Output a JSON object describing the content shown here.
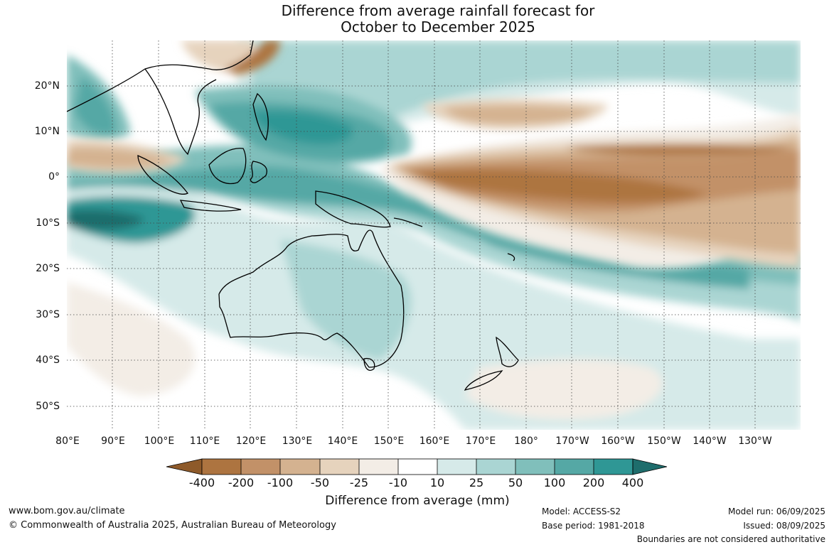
{
  "title": {
    "line1": "Difference from average rainfall forecast for",
    "line2": "October to December 2025"
  },
  "map": {
    "projection": "equirectangular, Pacific-centred",
    "lon_ticks": [
      "80°E",
      "90°E",
      "100°E",
      "110°E",
      "120°E",
      "130°E",
      "140°E",
      "150°E",
      "160°E",
      "170°E",
      "180°",
      "170°W",
      "160°W",
      "150°W",
      "140°W",
      "130°W"
    ],
    "lat_ticks": [
      "20°N",
      "10°N",
      "0°",
      "10°S",
      "20°S",
      "30°S",
      "40°S",
      "50°S"
    ],
    "gridlines": "dotted"
  },
  "colorbar": {
    "title": "Difference from average (mm)",
    "labels": [
      "-400",
      "-200",
      "-100",
      "-50",
      "-25",
      "-10",
      "10",
      "25",
      "50",
      "100",
      "200",
      "400"
    ],
    "colors": [
      "#8e5a2a",
      "#ad7440",
      "#c29168",
      "#d4b290",
      "#e6d3bd",
      "#f3ede6",
      "#ffffff",
      "#d6eae9",
      "#aad5d3",
      "#80bfbb",
      "#55a8a5",
      "#2f9795",
      "#1e6d6c"
    ]
  },
  "footer": {
    "website": "www.bom.gov.au/climate",
    "copyright": "© Commonwealth of Australia 2025, Australian Bureau of Meteorology",
    "model": "Model: ACCESS-S2",
    "base_period": "Base period: 1981-2018",
    "model_run": "Model run: 06/09/2025",
    "issued": "Issued: 08/09/2025",
    "disclaimer": "Boundaries are not considered authoritative"
  }
}
